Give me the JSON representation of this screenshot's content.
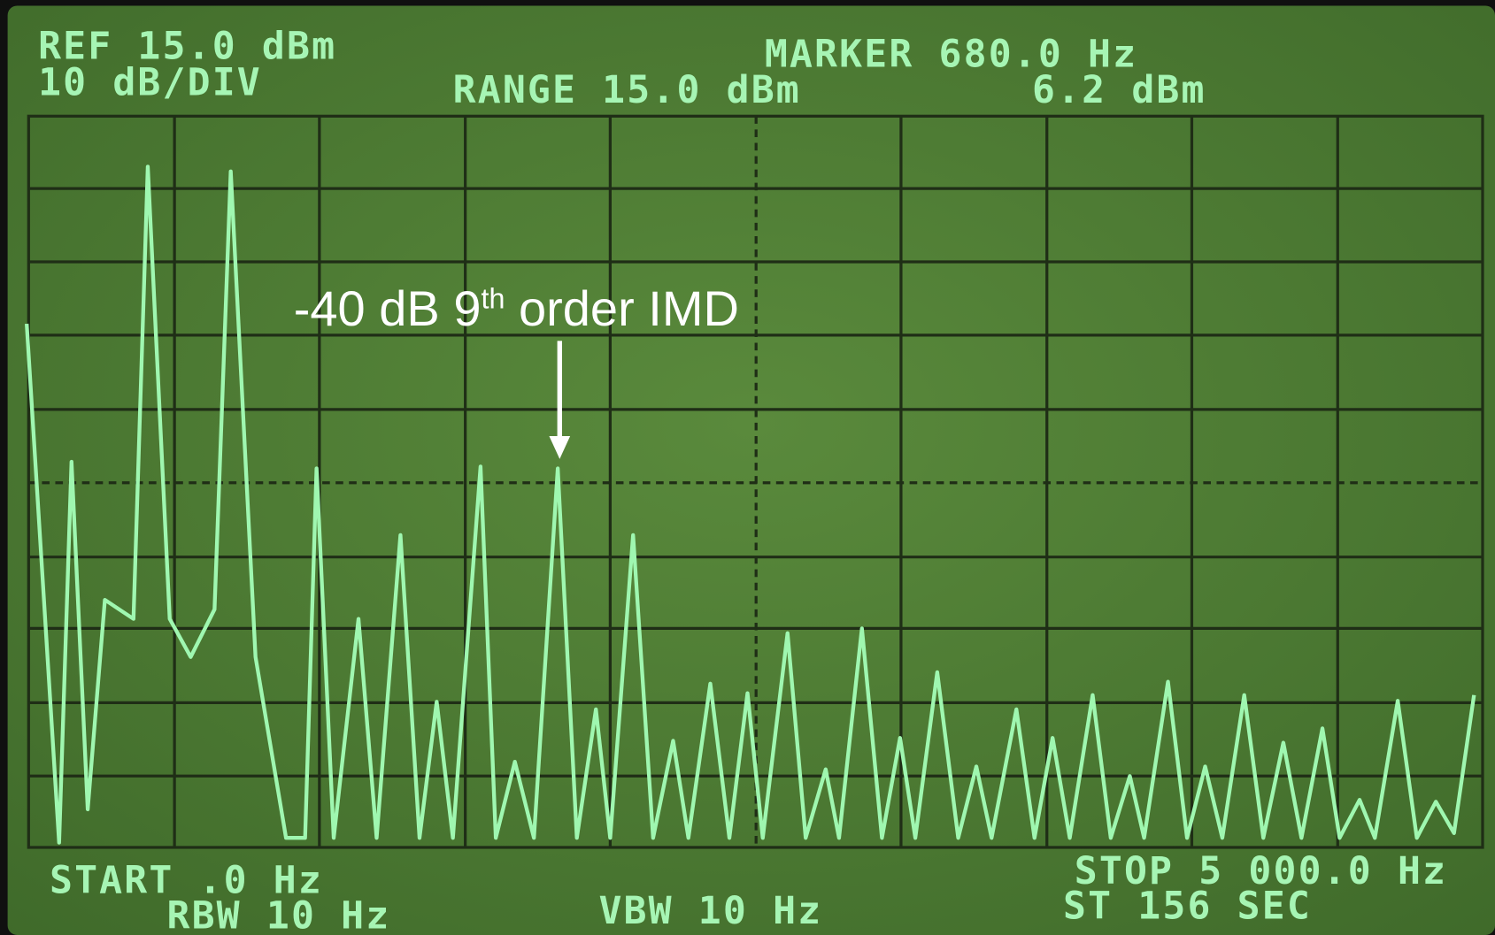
{
  "screen": {
    "header": {
      "ref": "REF 15.0 dBm",
      "scale": "10 dB/DIV",
      "range": "RANGE 15.0 dBm",
      "marker_freq": "MARKER 680.0 Hz",
      "marker_level": "6.2 dBm"
    },
    "annotation": {
      "lead": "-40 dB 9",
      "superscript": "th",
      "tail": " order IMD"
    },
    "footer": {
      "start": "START .0 Hz",
      "rbw": "RBW 10 Hz",
      "vbw": "VBW 10 Hz",
      "stop": "STOP 5 000.0 Hz",
      "sweep": "ST 156 SEC"
    }
  }
}
